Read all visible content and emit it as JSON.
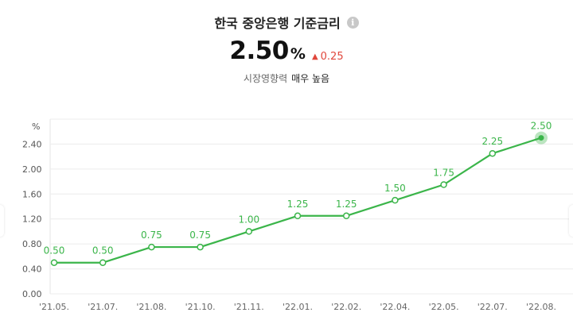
{
  "header": {
    "title": "한국 중앙은행 기준금리",
    "info_icon": "info-icon",
    "value": "2.50",
    "unit": "%",
    "change": "0.25",
    "change_icon": "triangle-up-icon",
    "influence_label": "시장영향력",
    "influence_value": "매우 높음"
  },
  "colors": {
    "line": "#3bb54a",
    "change": "#e0473c"
  },
  "chart_data": {
    "type": "line",
    "ylabel": "%",
    "ylim": [
      0,
      2.8
    ],
    "yticks": [
      "0.00",
      "0.40",
      "0.80",
      "1.20",
      "1.60",
      "2.00",
      "2.40"
    ],
    "categories": [
      "'21.05.",
      "'21.07.",
      "'21.08.",
      "'21.10.",
      "'21.11.",
      "'22.01.",
      "'22.02.",
      "'22.04.",
      "'22.05.",
      "'22.07.",
      "'22.08."
    ],
    "values": [
      0.5,
      0.5,
      0.75,
      0.75,
      1.0,
      1.25,
      1.25,
      1.5,
      1.75,
      2.25,
      2.5
    ],
    "value_labels": [
      "0.50",
      "0.50",
      "0.75",
      "0.75",
      "1.00",
      "1.25",
      "1.25",
      "1.50",
      "1.75",
      "2.25",
      "2.50"
    ],
    "grid": true,
    "legend": "none",
    "highlight_last": true
  }
}
